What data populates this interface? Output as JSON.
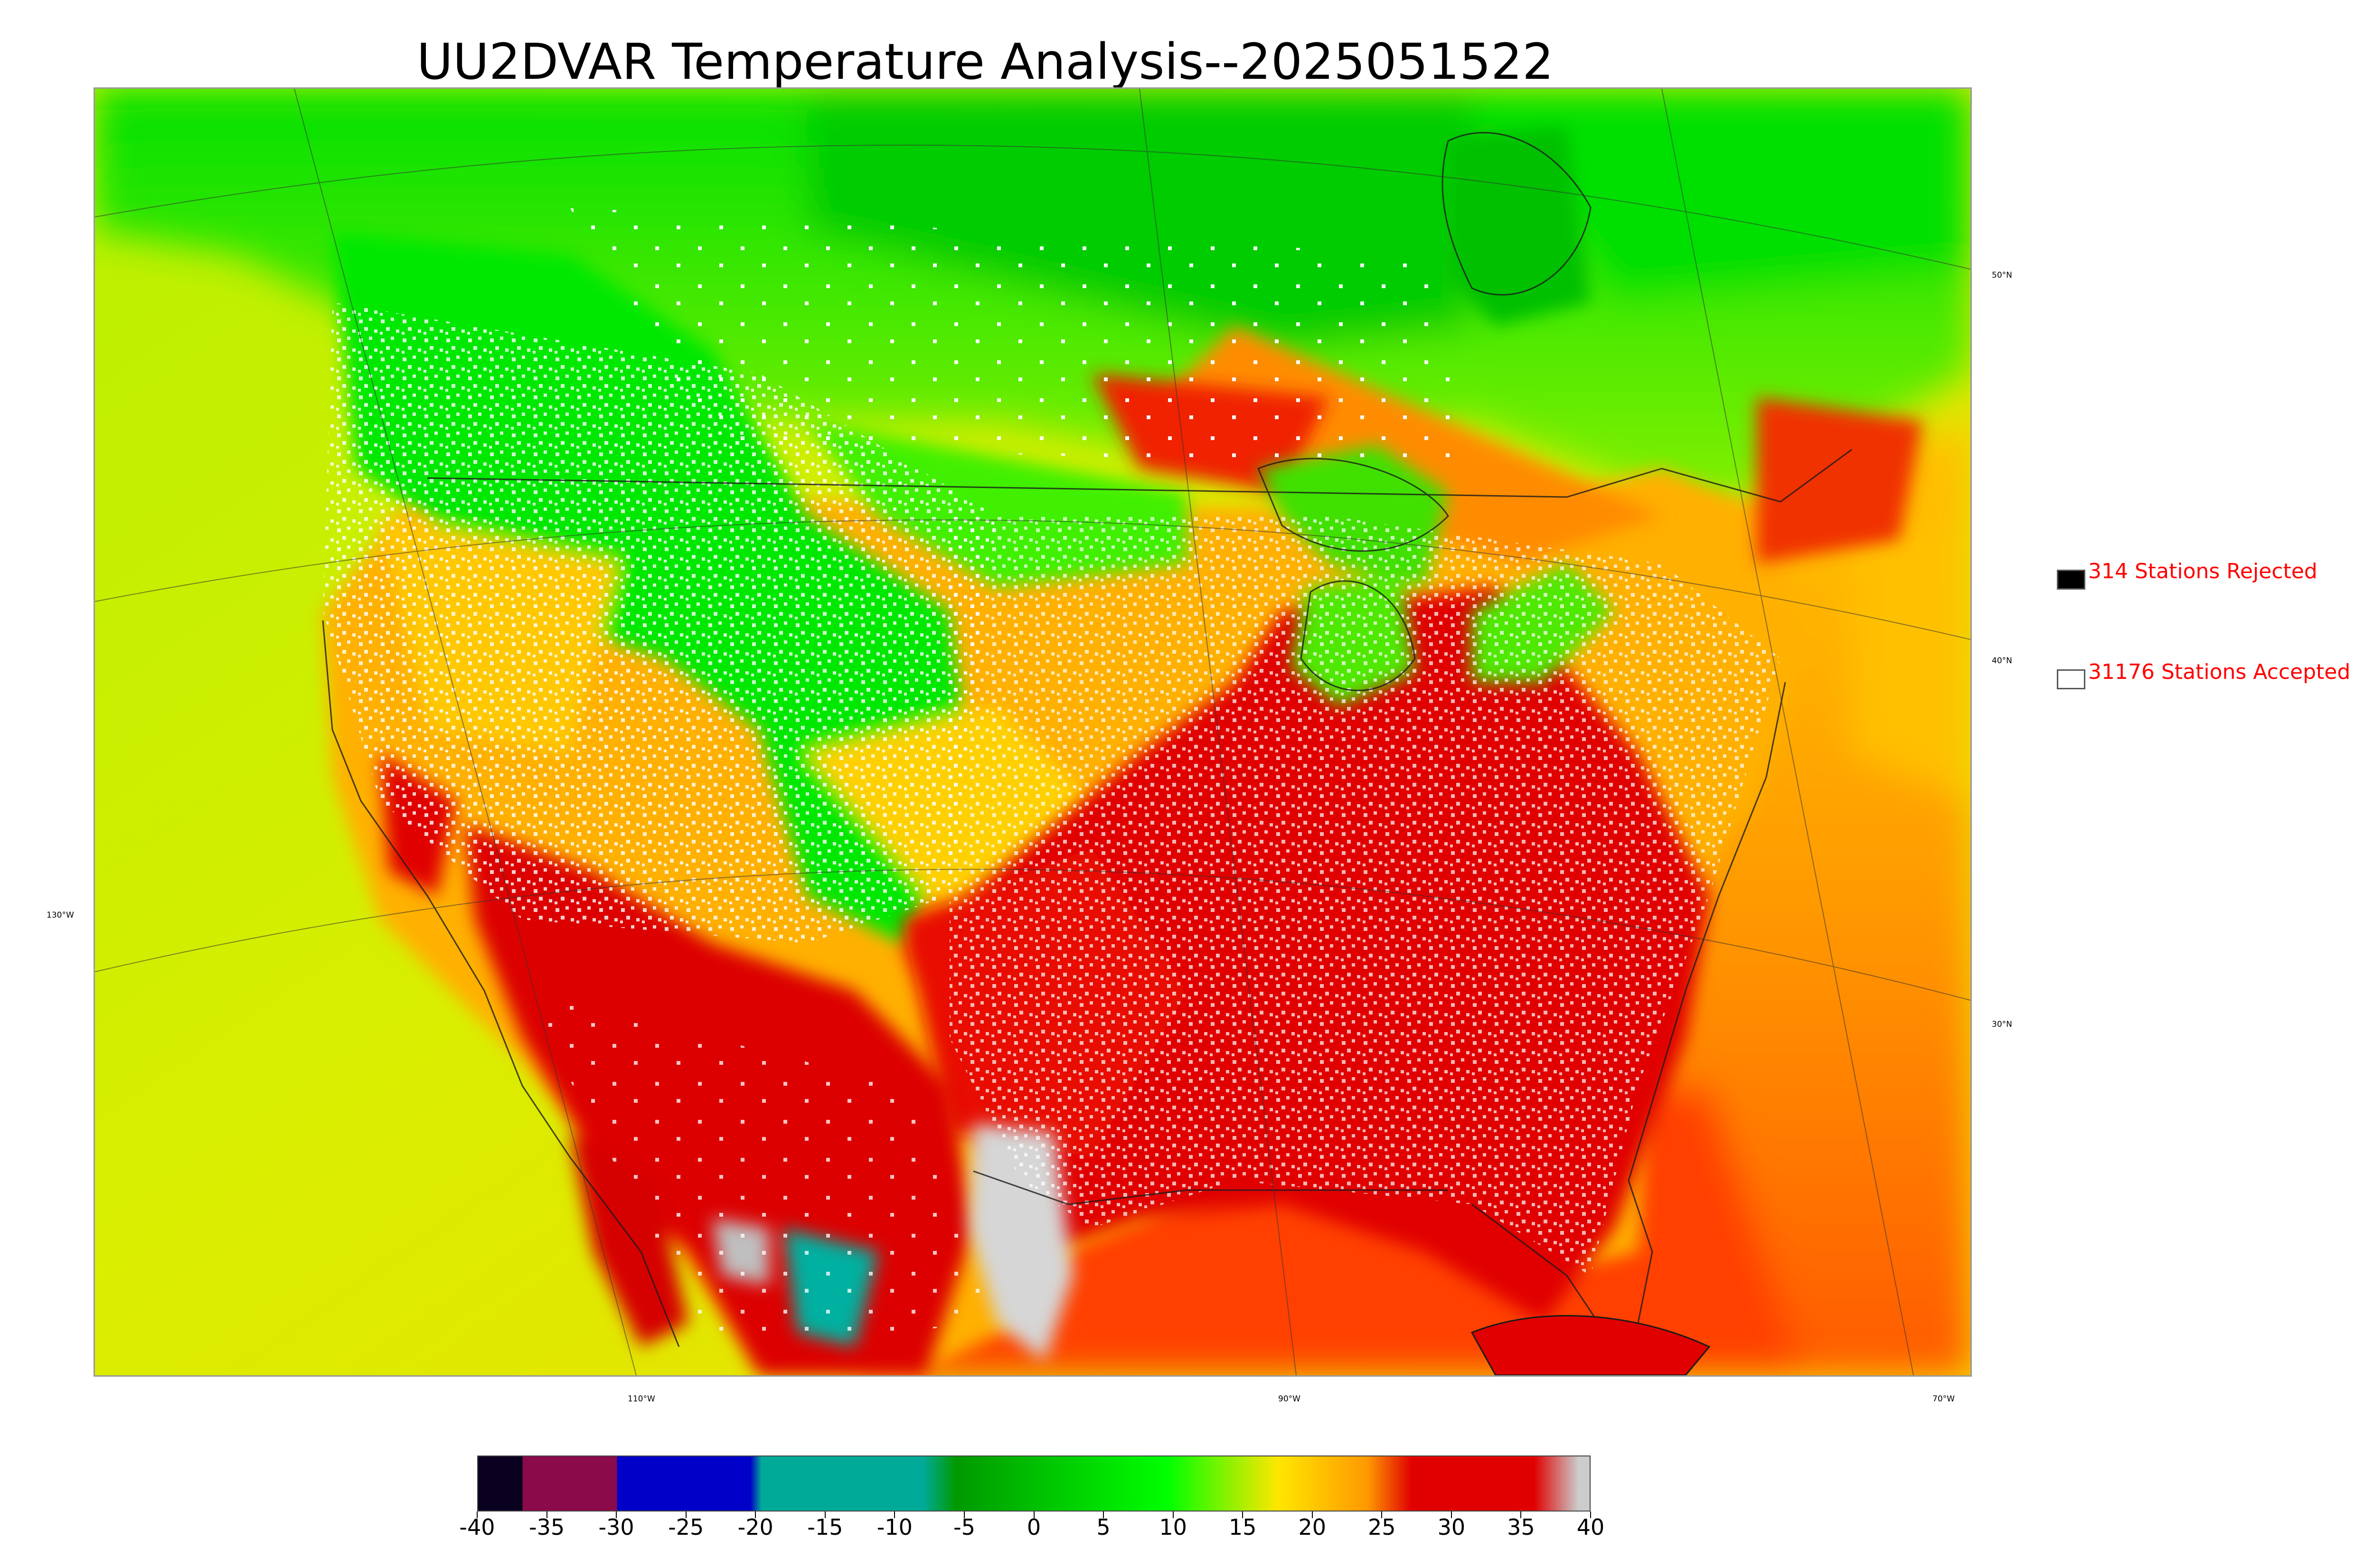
{
  "title": "UU2DVAR Temperature Analysis--2025051522",
  "map": {
    "lon_labels": [
      "110°W",
      "90°W",
      "70°W"
    ],
    "lat_labels": [
      "50°N",
      "40°N",
      "30°N"
    ],
    "left_labels": [
      "130°W"
    ]
  },
  "legend": {
    "rejected": {
      "label": "314 Stations Rejected",
      "count": 314,
      "color": "#000000"
    },
    "accepted": {
      "label": "31176 Stations Accepted",
      "count": 31176,
      "color": "#ffffff"
    }
  },
  "colorbar": {
    "ticks": [
      "-40",
      "-35",
      "-30",
      "-25",
      "-20",
      "-15",
      "-10",
      "-5",
      "0",
      "5",
      "10",
      "15",
      "20",
      "25",
      "30",
      "35",
      "40"
    ],
    "range": [
      -40,
      40
    ],
    "colors": {
      "deep_purple": "#0a0020",
      "maroon": "#8a0a4a",
      "blue": "#0000c8",
      "teal": "#00aa99",
      "green": "#009900",
      "bright_green": "#00ff00",
      "yellow": "#ffe600",
      "orange": "#ff9900",
      "red": "#e00000",
      "gray": "#cccccc"
    }
  }
}
